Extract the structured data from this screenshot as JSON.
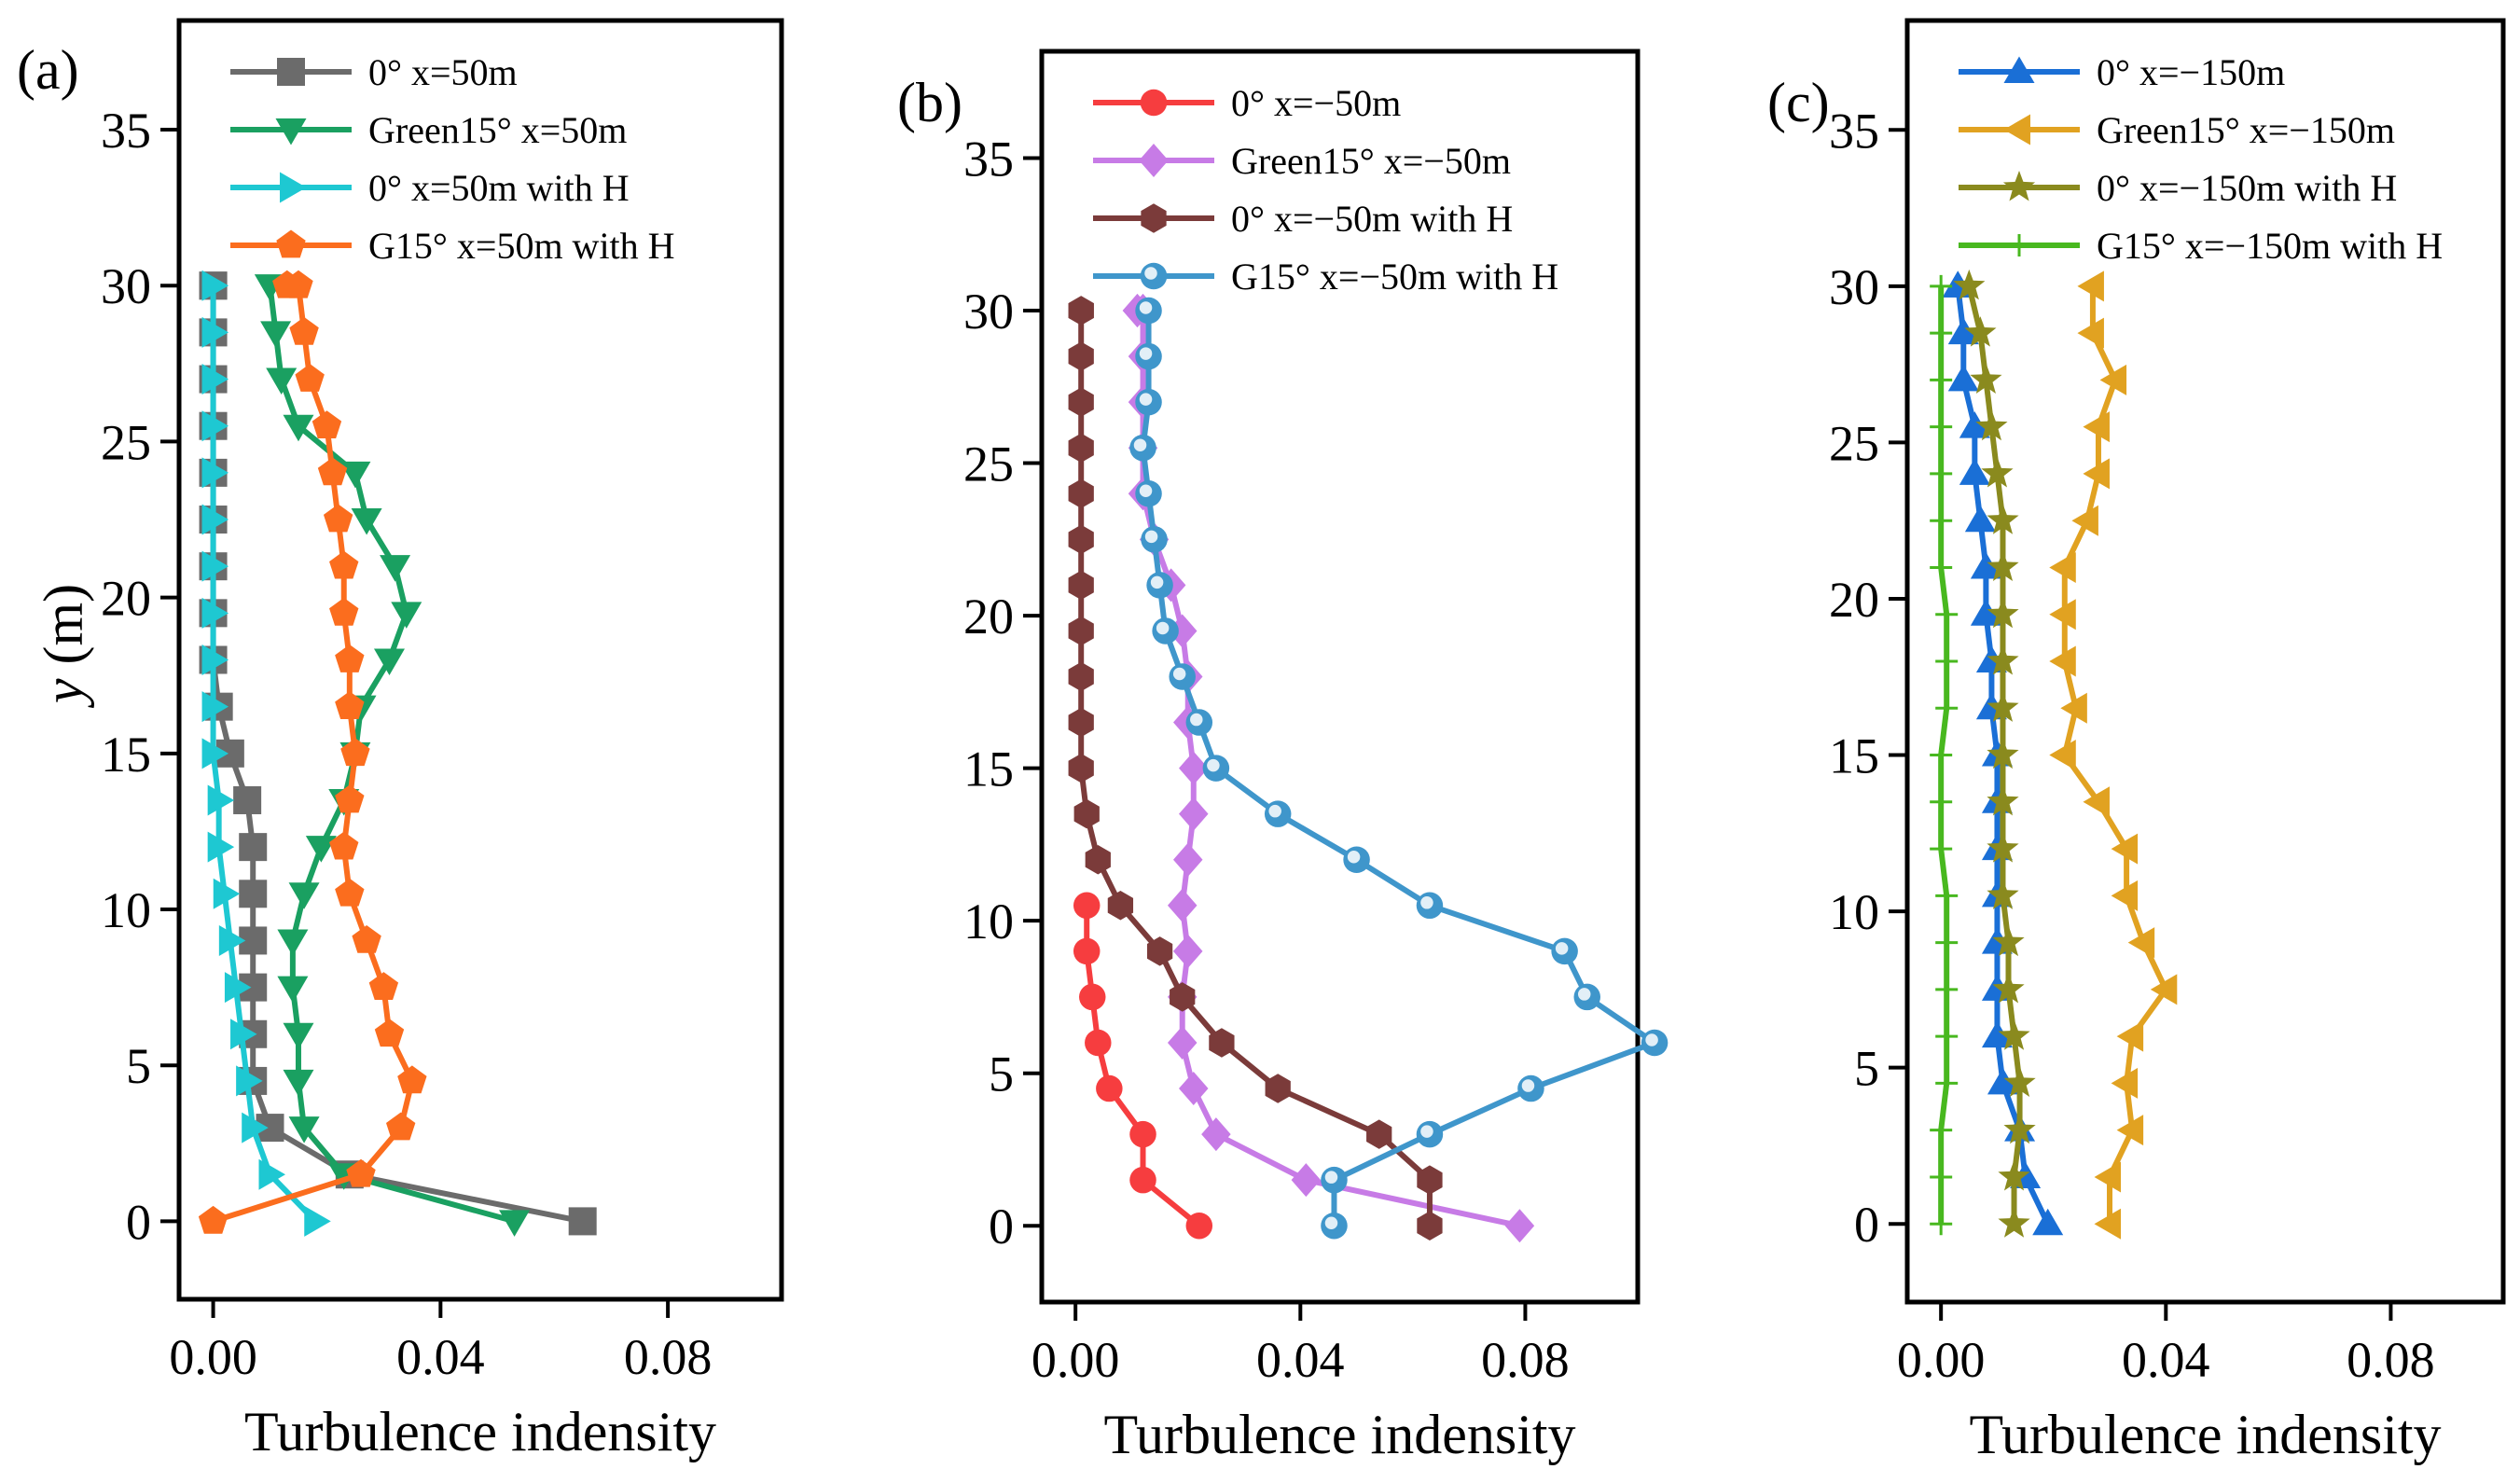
{
  "figure": {
    "ylabel_italic": "y",
    "ylabel_unit": " (m)"
  },
  "chart_data": [
    {
      "type": "line",
      "panel_label": "(a)",
      "xlabel": "Turbulence indensity",
      "xlim": [
        -0.006,
        0.1
      ],
      "ylim": [
        -2.5,
        38.5
      ],
      "xticks": [
        0.0,
        0.04,
        0.08
      ],
      "xtick_labels": [
        "0.00",
        "0.04",
        "0.08"
      ],
      "yticks": [
        0,
        5,
        10,
        15,
        20,
        25,
        30,
        35
      ],
      "ytick_labels": [
        "0",
        "5",
        "10",
        "15",
        "20",
        "25",
        "30",
        "35"
      ],
      "legend_position": "top-left",
      "series": [
        {
          "name": "0° x=50m",
          "color": "#6b6b6b",
          "marker": "square",
          "x": [
            0.065,
            0.024,
            0.01,
            0.007,
            0.007,
            0.007,
            0.007,
            0.007,
            0.007,
            0.006,
            0.003,
            0.001,
            0.0,
            0.0,
            0.0,
            0.0,
            0.0,
            0.0,
            0.0,
            0.0,
            0.0,
            0.0
          ],
          "y": [
            0,
            1.5,
            3,
            4.5,
            6,
            7.5,
            9,
            10.5,
            12,
            13.5,
            15,
            16.5,
            18,
            19.5,
            21,
            22.5,
            24,
            25.5,
            27,
            28.5,
            30,
            30
          ]
        },
        {
          "name": "Green15° x=50m",
          "color": "#1aa061",
          "marker": "triangle-down",
          "x": [
            0.053,
            0.023,
            0.016,
            0.015,
            0.015,
            0.014,
            0.014,
            0.016,
            0.019,
            0.023,
            0.025,
            0.026,
            0.031,
            0.034,
            0.032,
            0.027,
            0.025,
            0.015,
            0.012,
            0.011,
            0.01,
            0.01
          ],
          "y": [
            0,
            1.5,
            3,
            4.5,
            6,
            7.5,
            9,
            10.5,
            12,
            13.5,
            15,
            16.5,
            18,
            19.5,
            21,
            22.5,
            24,
            25.5,
            27,
            28.5,
            30,
            30
          ]
        },
        {
          "name": "0° x=50m with H",
          "color": "#1ec8d2",
          "marker": "triangle-right",
          "x": [
            0.018,
            0.01,
            0.007,
            0.006,
            0.005,
            0.004,
            0.003,
            0.002,
            0.001,
            0.001,
            0.0,
            0.0,
            0.0,
            0.0,
            0.0,
            0.0,
            0.0,
            0.0,
            0.0,
            0.0,
            0.0
          ],
          "y": [
            0,
            1.5,
            3,
            4.5,
            6,
            7.5,
            9,
            10.5,
            12,
            13.5,
            15,
            16.5,
            18,
            19.5,
            21,
            22.5,
            24,
            25.5,
            27,
            28.5,
            30
          ]
        },
        {
          "name": "G15° x=50m with H",
          "color": "#fb6d1e",
          "marker": "pentagon",
          "x": [
            0.0,
            0.026,
            0.033,
            0.035,
            0.031,
            0.03,
            0.027,
            0.024,
            0.023,
            0.024,
            0.025,
            0.024,
            0.024,
            0.023,
            0.023,
            0.022,
            0.021,
            0.02,
            0.017,
            0.016,
            0.015,
            0.013
          ],
          "y": [
            0,
            1.5,
            3,
            4.5,
            6,
            7.5,
            9,
            10.5,
            12,
            13.5,
            15,
            16.5,
            18,
            19.5,
            21,
            22.5,
            24,
            25.5,
            27,
            28.5,
            30,
            30
          ]
        }
      ]
    },
    {
      "type": "line",
      "panel_label": "(b)",
      "xlabel": "Turbulence indensity",
      "xlim": [
        -0.006,
        0.1
      ],
      "ylim": [
        -2.5,
        38.5
      ],
      "xticks": [
        0.0,
        0.04,
        0.08
      ],
      "xtick_labels": [
        "0.00",
        "0.04",
        "0.08"
      ],
      "yticks": [
        0,
        5,
        10,
        15,
        20,
        25,
        30,
        35
      ],
      "ytick_labels": [
        "0",
        "5",
        "10",
        "15",
        "20",
        "25",
        "30",
        "35"
      ],
      "legend_position": "top-left",
      "series": [
        {
          "name": "0° x=−50m",
          "color": "#f63d3f",
          "marker": "circle",
          "x": [
            0.022,
            0.012,
            0.012,
            0.006,
            0.004,
            0.003,
            0.002,
            0.002
          ],
          "y": [
            0,
            1.5,
            3,
            4.5,
            6,
            7.5,
            9,
            10.5
          ]
        },
        {
          "name": "Green15° x=−50m",
          "color": "#c77be6",
          "marker": "diamond",
          "x": [
            0.079,
            0.041,
            0.025,
            0.021,
            0.019,
            0.019,
            0.02,
            0.019,
            0.02,
            0.021,
            0.021,
            0.02,
            0.02,
            0.019,
            0.017,
            0.014,
            0.012,
            0.012,
            0.012,
            0.012,
            0.012,
            0.012,
            0.011,
            0.011
          ],
          "y": [
            0,
            1.5,
            3,
            4.5,
            6,
            7.5,
            9,
            10.5,
            12,
            13.5,
            15,
            16.5,
            18,
            19.5,
            21,
            22.5,
            24,
            25.5,
            27,
            28.5,
            30,
            30,
            30,
            30
          ]
        },
        {
          "name": "0° x=−50m with H",
          "color": "#7b3b3a",
          "marker": "hexagon",
          "x": [
            0.063,
            0.063,
            0.054,
            0.036,
            0.026,
            0.019,
            0.015,
            0.008,
            0.004,
            0.002,
            0.001,
            0.001,
            0.001,
            0.001,
            0.001,
            0.001,
            0.001,
            0.001,
            0.001,
            0.001,
            0.001,
            0.001
          ],
          "y": [
            0,
            1.5,
            3,
            4.5,
            6,
            7.5,
            9,
            10.5,
            12,
            13.5,
            15,
            16.5,
            18,
            19.5,
            21,
            22.5,
            24,
            25.5,
            27,
            28.5,
            30,
            30
          ]
        },
        {
          "name": "G15° x=−50m with H",
          "color": "#3f96cb",
          "marker": "sphere",
          "x": [
            0.046,
            0.046,
            0.063,
            0.081,
            0.103,
            0.091,
            0.087,
            0.063,
            0.05,
            0.036,
            0.025,
            0.022,
            0.019,
            0.016,
            0.015,
            0.014,
            0.013,
            0.012,
            0.013,
            0.013,
            0.013
          ],
          "y": [
            0,
            1.5,
            3,
            4.5,
            6,
            7.5,
            9,
            10.5,
            12,
            13.5,
            15,
            16.5,
            18,
            19.5,
            21,
            22.5,
            24,
            25.5,
            27,
            28.5,
            30
          ]
        }
      ]
    },
    {
      "type": "line",
      "panel_label": "(c)",
      "xlabel": "Turbulence indensity",
      "xlim": [
        -0.006,
        0.1
      ],
      "ylim": [
        -2.5,
        38.5
      ],
      "xticks": [
        0.0,
        0.04,
        0.08
      ],
      "xtick_labels": [
        "0.00",
        "0.04",
        "0.08"
      ],
      "yticks": [
        0,
        5,
        10,
        15,
        20,
        25,
        30,
        35
      ],
      "ytick_labels": [
        "0",
        "5",
        "10",
        "15",
        "20",
        "25",
        "30",
        "35"
      ],
      "legend_position": "top-left",
      "series": [
        {
          "name": "0° x=−150m",
          "color": "#1a6fd6",
          "marker": "triangle-up",
          "x": [
            0.019,
            0.015,
            0.014,
            0.011,
            0.01,
            0.01,
            0.01,
            0.01,
            0.01,
            0.01,
            0.01,
            0.009,
            0.009,
            0.008,
            0.008,
            0.007,
            0.006,
            0.006,
            0.004,
            0.004,
            0.003,
            0.003
          ],
          "y": [
            0,
            1.5,
            3,
            4.5,
            6,
            7.5,
            9,
            10.5,
            12,
            13.5,
            15,
            16.5,
            18,
            19.5,
            21,
            22.5,
            24,
            25.5,
            27,
            28.5,
            30,
            30
          ]
        },
        {
          "name": "Green15° x=−150m",
          "color": "#e1a221",
          "marker": "triangle-left",
          "x": [
            0.03,
            0.03,
            0.034,
            0.033,
            0.034,
            0.04,
            0.036,
            0.033,
            0.033,
            0.028,
            0.022,
            0.024,
            0.022,
            0.022,
            0.022,
            0.026,
            0.028,
            0.028,
            0.031,
            0.027,
            0.027
          ],
          "y": [
            0,
            1.5,
            3,
            4.5,
            6,
            7.5,
            9,
            10.5,
            12,
            13.5,
            15,
            16.5,
            18,
            19.5,
            21,
            22.5,
            24,
            25.5,
            27,
            28.5,
            30
          ]
        },
        {
          "name": "0° x=−150m with H",
          "color": "#8a8a1e",
          "marker": "star",
          "x": [
            0.013,
            0.013,
            0.014,
            0.014,
            0.013,
            0.012,
            0.012,
            0.011,
            0.011,
            0.011,
            0.011,
            0.011,
            0.011,
            0.011,
            0.011,
            0.011,
            0.01,
            0.009,
            0.008,
            0.007,
            0.005
          ],
          "y": [
            0,
            1.5,
            3,
            4.5,
            6,
            7.5,
            9,
            10.5,
            12,
            13.5,
            15,
            16.5,
            18,
            19.5,
            21,
            22.5,
            24,
            25.5,
            27,
            28.5,
            30
          ]
        },
        {
          "name": "G15° x=−150m with H",
          "color": "#48b81f",
          "marker": "plus",
          "x": [
            0.0,
            0.0,
            0.0,
            0.001,
            0.001,
            0.001,
            0.001,
            0.001,
            0.0,
            0.0,
            0.0,
            0.001,
            0.001,
            0.001,
            0.0,
            0.0,
            0.0,
            0.0,
            0.0,
            0.0,
            0.0
          ],
          "y": [
            0,
            1.5,
            3,
            4.5,
            6,
            7.5,
            9,
            10.5,
            12,
            13.5,
            15,
            16.5,
            18,
            19.5,
            21,
            22.5,
            24,
            25.5,
            27,
            28.5,
            30
          ]
        }
      ]
    }
  ]
}
